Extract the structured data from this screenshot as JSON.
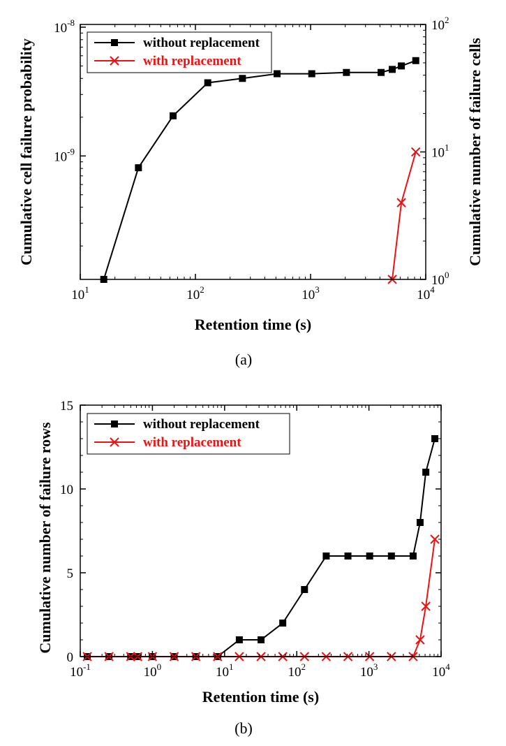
{
  "chart_data": [
    {
      "type": "line",
      "panel_label": "(a)",
      "xlabel": "Retention time (s)",
      "ylabel": "Cumulative cell failure probability",
      "y2label": "Cumulative number of failure cells",
      "xscale": "log",
      "yscale": "log",
      "y2scale": "log",
      "xlim": [
        10,
        10000
      ],
      "ylim": [
        1.1e-10,
        1.05e-08
      ],
      "y2lim": [
        1,
        100
      ],
      "x_ticks": [
        {
          "base": "10",
          "exp": "1",
          "value": 10
        },
        {
          "base": "10",
          "exp": "2",
          "value": 100
        },
        {
          "base": "10",
          "exp": "3",
          "value": 1000
        },
        {
          "base": "10",
          "exp": "4",
          "value": 10000
        }
      ],
      "y_ticks": [
        {
          "base": "10",
          "exp": "-8",
          "value": 1e-08
        },
        {
          "base": "10",
          "exp": "-9",
          "value": 1e-09
        }
      ],
      "y2_ticks": [
        {
          "base": "10",
          "exp": "2",
          "value": 100
        },
        {
          "base": "10",
          "exp": "1",
          "value": 10
        },
        {
          "base": "10",
          "exp": "0",
          "value": 1
        }
      ],
      "legend_position": "top-left",
      "series": [
        {
          "name": "without replacement",
          "axis": "left",
          "color": "#000000",
          "marker": "square",
          "x": [
            16,
            32,
            64,
            128,
            256,
            512,
            1024,
            2048,
            4096,
            5120,
            6144,
            8192
          ],
          "y": [
            1.1e-10,
            8.1e-10,
            2.05e-09,
            3.7e-09,
            4e-09,
            4.35e-09,
            4.35e-09,
            4.45e-09,
            4.45e-09,
            4.7e-09,
            5e-09,
            5.5e-09
          ]
        },
        {
          "name": "with replacement",
          "axis": "right",
          "color": "#ee1111",
          "marker": "x",
          "x": [
            5120,
            6144,
            8192
          ],
          "y": [
            1,
            4,
            10
          ]
        }
      ]
    },
    {
      "type": "line",
      "panel_label": "(b)",
      "xlabel": "Retention time (s)",
      "ylabel": "Cumulative number of failure rows",
      "xscale": "log",
      "yscale": "linear",
      "xlim": [
        0.1,
        10000
      ],
      "ylim": [
        0,
        15
      ],
      "x_ticks": [
        {
          "base": "10",
          "exp": "-1",
          "value": 0.1
        },
        {
          "base": "10",
          "exp": "0",
          "value": 1
        },
        {
          "base": "10",
          "exp": "1",
          "value": 10
        },
        {
          "base": "10",
          "exp": "2",
          "value": 100
        },
        {
          "base": "10",
          "exp": "3",
          "value": 1000
        },
        {
          "base": "10",
          "exp": "4",
          "value": 10000
        }
      ],
      "y_ticks": [
        {
          "label": "0",
          "value": 0
        },
        {
          "label": "5",
          "value": 5
        },
        {
          "label": "10",
          "value": 10
        },
        {
          "label": "15",
          "value": 15
        }
      ],
      "legend_position": "top-left",
      "series": [
        {
          "name": "without replacement",
          "color": "#000000",
          "marker": "square",
          "x": [
            0.125,
            0.25,
            0.5,
            0.625,
            1,
            2,
            4,
            8,
            16,
            32,
            64,
            128,
            256,
            512,
            1024,
            2048,
            4096,
            5120,
            6144,
            8192
          ],
          "y": [
            0,
            0,
            0,
            0,
            0,
            0,
            0,
            0,
            1,
            1,
            2,
            4,
            6,
            6,
            6,
            6,
            6,
            8,
            11,
            13
          ]
        },
        {
          "name": "with replacement",
          "color": "#ee1111",
          "marker": "x",
          "x": [
            0.125,
            0.25,
            0.5,
            0.625,
            1,
            2,
            4,
            8,
            16,
            32,
            64,
            128,
            256,
            512,
            1024,
            2048,
            4096,
            5120,
            6144,
            8192
          ],
          "y": [
            0,
            0,
            0,
            0,
            0,
            0,
            0,
            0,
            0,
            0,
            0,
            0,
            0,
            0,
            0,
            0,
            0,
            1,
            3,
            7
          ]
        }
      ]
    }
  ]
}
